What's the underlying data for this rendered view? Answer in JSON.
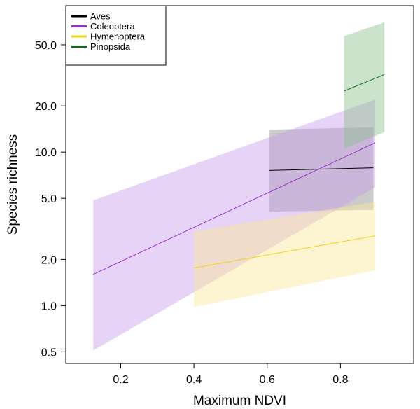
{
  "chart_data": {
    "type": "line",
    "title": "",
    "xlabel": "Maximum NDVI",
    "ylabel": "Species richness",
    "xlim": [
      0.05,
      1.0
    ],
    "ylim": [
      0.42,
      90
    ],
    "y_scale": "log",
    "grid": false,
    "legend_position": "top-left",
    "x_ticks": [
      0.2,
      0.4,
      0.6,
      0.8
    ],
    "x_tick_labels": [
      "0.2",
      "0.4",
      "0.6",
      "0.8"
    ],
    "y_ticks": [
      0.5,
      1.0,
      2.0,
      5.0,
      10.0,
      20.0,
      50.0
    ],
    "y_tick_labels": [
      "0.5",
      "1.0",
      "2.0",
      "5.0",
      "10.0",
      "20.0",
      "50.0"
    ],
    "series": [
      {
        "name": "Aves",
        "color": "#000000",
        "fill": "#8c8c8c",
        "x": [
          0.605,
          0.89
        ],
        "fit": [
          7.6,
          7.9
        ],
        "lower": [
          4.1,
          4.2
        ],
        "upper": [
          14.0,
          14.5
        ]
      },
      {
        "name": "Coleoptera",
        "color": "#9932cc",
        "fill": "#c89ee8",
        "x": [
          0.125,
          0.895
        ],
        "fit": [
          1.6,
          11.5
        ],
        "lower": [
          0.51,
          5.9
        ],
        "upper": [
          4.85,
          22.0
        ]
      },
      {
        "name": "Hymenoptera",
        "color": "#f2d21a",
        "fill": "#fbe79a",
        "x": [
          0.4,
          0.895
        ],
        "fit": [
          1.76,
          2.85
        ],
        "lower": [
          0.98,
          1.7
        ],
        "upper": [
          3.05,
          4.75
        ]
      },
      {
        "name": "Pinopsida",
        "color": "#0f6e1e",
        "fill": "#8bbf8c",
        "x": [
          0.81,
          0.92
        ],
        "fit": [
          25.0,
          32.0
        ],
        "lower": [
          10.5,
          13.5
        ],
        "upper": [
          57.0,
          70.0
        ]
      }
    ]
  }
}
